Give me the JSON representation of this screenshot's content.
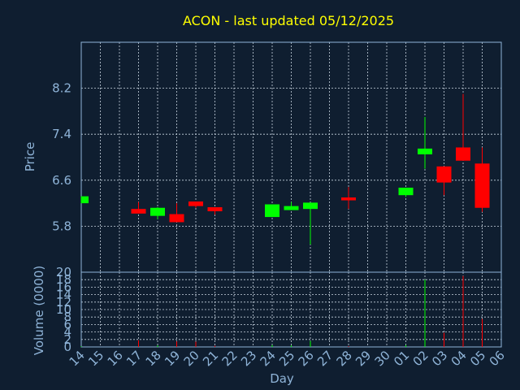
{
  "chart_data": {
    "type": "candlestick",
    "title": "ACON - last updated 05/12/2025",
    "xlabel": "Day",
    "ylabel_price": "Price",
    "ylabel_volume": "Volume (0000)",
    "x_ticks": [
      "14",
      "15",
      "16",
      "17",
      "18",
      "19",
      "20",
      "21",
      "22",
      "23",
      "24",
      "25",
      "26",
      "27",
      "28",
      "29",
      "30",
      "01",
      "02",
      "03",
      "04",
      "05",
      "06"
    ],
    "price_ticks": [
      "5.8",
      "6.6",
      "7.4",
      "8.2"
    ],
    "price_ylim": [
      5.0,
      9.0
    ],
    "volume_ticks": [
      "0",
      "2",
      "4",
      "6",
      "8",
      "10",
      "12",
      "14",
      "16",
      "18",
      "20"
    ],
    "volume_ylim": [
      0,
      20
    ],
    "candles": [
      {
        "i": 0,
        "open": 6.2,
        "close": 6.32,
        "high": 6.32,
        "low": 6.2,
        "volume": 0.2
      },
      {
        "i": 3,
        "open": 6.1,
        "close": 6.02,
        "high": 6.22,
        "low": 6.02,
        "volume": 1.8
      },
      {
        "i": 4,
        "open": 5.98,
        "close": 6.12,
        "high": 6.13,
        "low": 5.92,
        "volume": 0.4
      },
      {
        "i": 5,
        "open": 6.01,
        "close": 5.87,
        "high": 6.2,
        "low": 5.87,
        "volume": 1.5
      },
      {
        "i": 6,
        "open": 6.23,
        "close": 6.15,
        "high": 6.23,
        "low": 6.12,
        "volume": 1.4
      },
      {
        "i": 7,
        "open": 6.13,
        "close": 6.06,
        "high": 6.13,
        "low": 6.0,
        "volume": 0.3
      },
      {
        "i": 10,
        "open": 5.96,
        "close": 6.18,
        "high": 6.18,
        "low": 5.96,
        "volume": 0.5
      },
      {
        "i": 11,
        "open": 6.08,
        "close": 6.15,
        "high": 6.22,
        "low": 6.08,
        "volume": 0.4
      },
      {
        "i": 12,
        "open": 6.1,
        "close": 6.21,
        "high": 6.21,
        "low": 5.48,
        "volume": 1.6
      },
      {
        "i": 14,
        "open": 6.3,
        "close": 6.25,
        "high": 6.48,
        "low": 6.1,
        "volume": 0.2
      },
      {
        "i": 17,
        "open": 6.34,
        "close": 6.47,
        "high": 6.47,
        "low": 6.31,
        "volume": 0.5
      },
      {
        "i": 18,
        "open": 7.05,
        "close": 7.15,
        "high": 7.7,
        "low": 6.8,
        "volume": 18.0
      },
      {
        "i": 19,
        "open": 6.84,
        "close": 6.56,
        "high": 6.84,
        "low": 6.34,
        "volume": 3.8
      },
      {
        "i": 20,
        "open": 7.17,
        "close": 6.94,
        "high": 8.1,
        "low": 6.94,
        "volume": 19.0
      },
      {
        "i": 21,
        "open": 6.89,
        "close": 6.12,
        "high": 7.17,
        "low": 6.05,
        "volume": 7.5
      }
    ],
    "up_color": "#00ff00",
    "down_color": "#ff0000",
    "grid": true,
    "legend": false
  }
}
